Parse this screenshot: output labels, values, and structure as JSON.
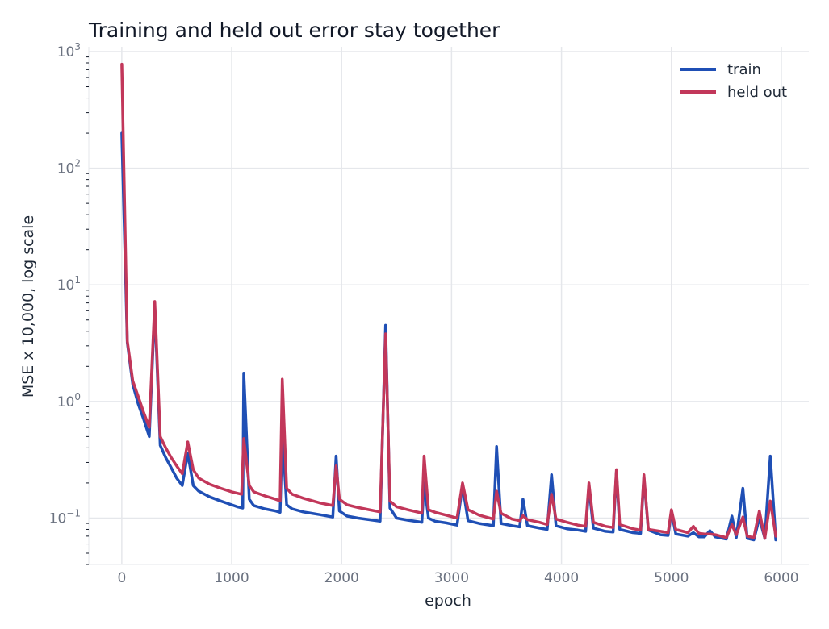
{
  "chart_data": {
    "type": "line",
    "title": "Training and held out error stay together",
    "xlabel": "epoch",
    "ylabel": "MSE x 10,000, log scale",
    "yscale": "log",
    "xlim": [
      -300,
      6250
    ],
    "ylim": [
      0.04,
      1100
    ],
    "grid": true,
    "legend_position": "top-right",
    "x_ticks": [
      0,
      1000,
      2000,
      3000,
      4000,
      5000,
      6000
    ],
    "x_tick_labels": [
      "0",
      "1000",
      "2000",
      "3000",
      "4000",
      "5000",
      "6000"
    ],
    "y_ticks": [
      0.1,
      1,
      10,
      100,
      1000
    ],
    "y_tick_labels": [
      {
        "base": "10",
        "exp": "−1"
      },
      {
        "base": "10",
        "exp": "0"
      },
      {
        "base": "10",
        "exp": "1"
      },
      {
        "base": "10",
        "exp": "2"
      },
      {
        "base": "10",
        "exp": "3"
      }
    ],
    "series": [
      {
        "name": "train",
        "color": "#1f4fb5",
        "points": [
          [
            0,
            200
          ],
          [
            50,
            3.2
          ],
          [
            100,
            1.4
          ],
          [
            150,
            0.95
          ],
          [
            200,
            0.7
          ],
          [
            250,
            0.5
          ],
          [
            300,
            6.5
          ],
          [
            350,
            0.42
          ],
          [
            400,
            0.33
          ],
          [
            450,
            0.27
          ],
          [
            500,
            0.22
          ],
          [
            550,
            0.19
          ],
          [
            600,
            0.36
          ],
          [
            650,
            0.19
          ],
          [
            700,
            0.17
          ],
          [
            800,
            0.152
          ],
          [
            900,
            0.14
          ],
          [
            1000,
            0.13
          ],
          [
            1050,
            0.125
          ],
          [
            1100,
            0.122
          ],
          [
            1110,
            1.75
          ],
          [
            1160,
            0.145
          ],
          [
            1200,
            0.128
          ],
          [
            1300,
            0.12
          ],
          [
            1400,
            0.115
          ],
          [
            1440,
            0.112
          ],
          [
            1460,
            0.55
          ],
          [
            1500,
            0.13
          ],
          [
            1550,
            0.12
          ],
          [
            1650,
            0.113
          ],
          [
            1800,
            0.107
          ],
          [
            1920,
            0.102
          ],
          [
            1950,
            0.34
          ],
          [
            1980,
            0.115
          ],
          [
            2050,
            0.104
          ],
          [
            2150,
            0.1
          ],
          [
            2250,
            0.097
          ],
          [
            2350,
            0.094
          ],
          [
            2400,
            4.5
          ],
          [
            2440,
            0.122
          ],
          [
            2500,
            0.1
          ],
          [
            2600,
            0.096
          ],
          [
            2700,
            0.093
          ],
          [
            2730,
            0.092
          ],
          [
            2750,
            0.2
          ],
          [
            2790,
            0.1
          ],
          [
            2850,
            0.094
          ],
          [
            2950,
            0.091
          ],
          [
            3050,
            0.087
          ],
          [
            3100,
            0.19
          ],
          [
            3150,
            0.095
          ],
          [
            3250,
            0.09
          ],
          [
            3380,
            0.086
          ],
          [
            3410,
            0.41
          ],
          [
            3450,
            0.09
          ],
          [
            3550,
            0.086
          ],
          [
            3620,
            0.084
          ],
          [
            3650,
            0.145
          ],
          [
            3690,
            0.086
          ],
          [
            3800,
            0.082
          ],
          [
            3870,
            0.08
          ],
          [
            3910,
            0.235
          ],
          [
            3950,
            0.086
          ],
          [
            4050,
            0.081
          ],
          [
            4150,
            0.079
          ],
          [
            4220,
            0.077
          ],
          [
            4250,
            0.185
          ],
          [
            4290,
            0.082
          ],
          [
            4400,
            0.077
          ],
          [
            4470,
            0.076
          ],
          [
            4500,
            0.25
          ],
          [
            4530,
            0.08
          ],
          [
            4650,
            0.075
          ],
          [
            4720,
            0.074
          ],
          [
            4750,
            0.225
          ],
          [
            4790,
            0.079
          ],
          [
            4900,
            0.072
          ],
          [
            4970,
            0.071
          ],
          [
            5000,
            0.113
          ],
          [
            5040,
            0.073
          ],
          [
            5150,
            0.07
          ],
          [
            5200,
            0.075
          ],
          [
            5250,
            0.069
          ],
          [
            5300,
            0.069
          ],
          [
            5350,
            0.078
          ],
          [
            5400,
            0.069
          ],
          [
            5500,
            0.066
          ],
          [
            5550,
            0.104
          ],
          [
            5590,
            0.068
          ],
          [
            5650,
            0.18
          ],
          [
            5690,
            0.067
          ],
          [
            5750,
            0.065
          ],
          [
            5800,
            0.1
          ],
          [
            5850,
            0.067
          ],
          [
            5900,
            0.34
          ],
          [
            5950,
            0.065
          ]
        ]
      },
      {
        "name": "held out",
        "color": "#c2375a",
        "points": [
          [
            0,
            780
          ],
          [
            50,
            3.3
          ],
          [
            100,
            1.5
          ],
          [
            150,
            1.1
          ],
          [
            200,
            0.8
          ],
          [
            250,
            0.6
          ],
          [
            300,
            7.2
          ],
          [
            350,
            0.5
          ],
          [
            400,
            0.4
          ],
          [
            450,
            0.33
          ],
          [
            500,
            0.28
          ],
          [
            550,
            0.24
          ],
          [
            600,
            0.45
          ],
          [
            650,
            0.26
          ],
          [
            700,
            0.22
          ],
          [
            800,
            0.195
          ],
          [
            900,
            0.18
          ],
          [
            1000,
            0.168
          ],
          [
            1090,
            0.16
          ],
          [
            1110,
            0.48
          ],
          [
            1160,
            0.19
          ],
          [
            1200,
            0.168
          ],
          [
            1300,
            0.155
          ],
          [
            1400,
            0.145
          ],
          [
            1440,
            0.14
          ],
          [
            1460,
            1.55
          ],
          [
            1500,
            0.18
          ],
          [
            1550,
            0.16
          ],
          [
            1650,
            0.148
          ],
          [
            1800,
            0.135
          ],
          [
            1920,
            0.128
          ],
          [
            1950,
            0.28
          ],
          [
            1980,
            0.145
          ],
          [
            2050,
            0.13
          ],
          [
            2150,
            0.123
          ],
          [
            2250,
            0.118
          ],
          [
            2350,
            0.113
          ],
          [
            2400,
            3.8
          ],
          [
            2440,
            0.14
          ],
          [
            2500,
            0.125
          ],
          [
            2600,
            0.118
          ],
          [
            2700,
            0.112
          ],
          [
            2730,
            0.11
          ],
          [
            2750,
            0.34
          ],
          [
            2790,
            0.118
          ],
          [
            2850,
            0.112
          ],
          [
            2950,
            0.106
          ],
          [
            3050,
            0.1
          ],
          [
            3100,
            0.2
          ],
          [
            3150,
            0.118
          ],
          [
            3250,
            0.106
          ],
          [
            3380,
            0.098
          ],
          [
            3410,
            0.17
          ],
          [
            3450,
            0.11
          ],
          [
            3550,
            0.098
          ],
          [
            3620,
            0.095
          ],
          [
            3650,
            0.105
          ],
          [
            3690,
            0.097
          ],
          [
            3800,
            0.092
          ],
          [
            3870,
            0.088
          ],
          [
            3910,
            0.16
          ],
          [
            3950,
            0.098
          ],
          [
            4050,
            0.092
          ],
          [
            4150,
            0.087
          ],
          [
            4220,
            0.085
          ],
          [
            4250,
            0.2
          ],
          [
            4290,
            0.092
          ],
          [
            4400,
            0.085
          ],
          [
            4470,
            0.083
          ],
          [
            4500,
            0.26
          ],
          [
            4530,
            0.088
          ],
          [
            4650,
            0.081
          ],
          [
            4720,
            0.079
          ],
          [
            4750,
            0.235
          ],
          [
            4790,
            0.08
          ],
          [
            4900,
            0.077
          ],
          [
            4970,
            0.075
          ],
          [
            5000,
            0.118
          ],
          [
            5040,
            0.08
          ],
          [
            5150,
            0.075
          ],
          [
            5200,
            0.085
          ],
          [
            5250,
            0.074
          ],
          [
            5300,
            0.073
          ],
          [
            5350,
            0.073
          ],
          [
            5400,
            0.072
          ],
          [
            5500,
            0.068
          ],
          [
            5550,
            0.088
          ],
          [
            5590,
            0.072
          ],
          [
            5650,
            0.102
          ],
          [
            5690,
            0.07
          ],
          [
            5750,
            0.068
          ],
          [
            5800,
            0.115
          ],
          [
            5850,
            0.067
          ],
          [
            5900,
            0.14
          ],
          [
            5950,
            0.07
          ]
        ]
      }
    ]
  }
}
